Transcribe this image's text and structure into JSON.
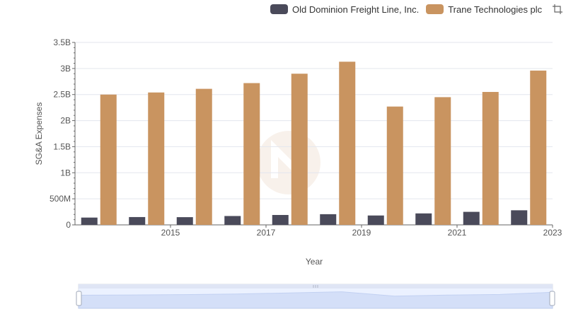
{
  "legend": {
    "items": [
      {
        "label": "Old Dominion Freight Line, Inc.",
        "color": "#4a4a5a"
      },
      {
        "label": "Trane Technologies plc",
        "color": "#c99460"
      }
    ],
    "toolbox": [
      "zoom-icon",
      "restore-icon"
    ]
  },
  "chart_data": {
    "type": "bar",
    "title": "",
    "xlabel": "Year",
    "ylabel": "SG&A Expenses",
    "ylim": [
      0,
      3500000000
    ],
    "yticks": [
      0,
      500000000,
      1000000000,
      1500000000,
      2000000000,
      2500000000,
      3000000000,
      3500000000
    ],
    "ytick_labels": [
      "0",
      "500M",
      "1B",
      "1.5B",
      "2B",
      "2.5B",
      "3B",
      "3.5B"
    ],
    "categories": [
      "2014",
      "2015",
      "2016",
      "2017",
      "2018",
      "2019",
      "2020",
      "2021",
      "2022",
      "2023"
    ],
    "xtick_labels": [
      "",
      "2015",
      "",
      "2017",
      "",
      "2019",
      "",
      "2021",
      "",
      "2023"
    ],
    "series": [
      {
        "name": "Old Dominion Freight Line, Inc.",
        "color": "#4a4a5a",
        "values": [
          140000000,
          150000000,
          148000000,
          170000000,
          190000000,
          205000000,
          180000000,
          220000000,
          250000000,
          280000000
        ]
      },
      {
        "name": "Trane Technologies plc",
        "color": "#c99460",
        "values": [
          2500000000,
          2540000000,
          2610000000,
          2720000000,
          2900000000,
          3130000000,
          2270000000,
          2450000000,
          2550000000,
          2960000000
        ]
      }
    ],
    "grid": true,
    "legend_position": "top-right",
    "datazoom": {
      "start": 0,
      "end": 100
    }
  }
}
